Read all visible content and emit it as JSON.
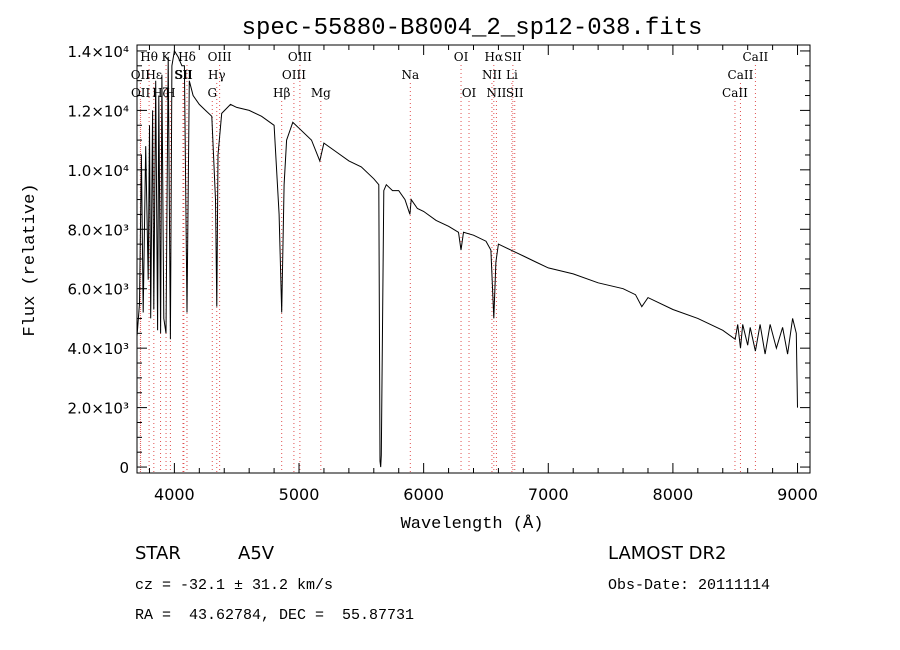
{
  "chart_data": {
    "type": "line",
    "title": "spec-55880-B8004_2_sp12-038.fits",
    "xlabel": "Wavelength (Å)",
    "ylabel": "Flux (relative)",
    "xlim": [
      3700,
      9100
    ],
    "ylim": [
      -200,
      14200
    ],
    "x_ticks": [
      4000,
      5000,
      6000,
      7000,
      8000,
      9000
    ],
    "y_ticks": [
      {
        "value": 0,
        "label": "0"
      },
      {
        "value": 2000,
        "label": "2.0×10³"
      },
      {
        "value": 4000,
        "label": "4.0×10³"
      },
      {
        "value": 6000,
        "label": "6.0×10³"
      },
      {
        "value": 8000,
        "label": "8.0×10³"
      },
      {
        "value": 10000,
        "label": "1.0×10⁴"
      },
      {
        "value": 12000,
        "label": "1.2×10⁴"
      },
      {
        "value": 14000,
        "label": "1.4×10⁴"
      }
    ],
    "spectrum": {
      "x": [
        3700,
        3720,
        3735,
        3750,
        3770,
        3790,
        3800,
        3810,
        3825,
        3835,
        3850,
        3865,
        3875,
        3889,
        3900,
        3915,
        3933,
        3950,
        3968,
        3980,
        4000,
        4030,
        4060,
        4080,
        4101,
        4120,
        4150,
        4200,
        4250,
        4300,
        4330,
        4340,
        4350,
        4380,
        4450,
        4500,
        4600,
        4700,
        4800,
        4840,
        4861,
        4880,
        4900,
        4950,
        5000,
        5100,
        5167,
        5200,
        5300,
        5400,
        5500,
        5600,
        5640,
        5650,
        5655,
        5660,
        5680,
        5700,
        5750,
        5800,
        5850,
        5890,
        5900,
        5950,
        6000,
        6100,
        6200,
        6280,
        6300,
        6320,
        6400,
        6500,
        6540,
        6563,
        6580,
        6600,
        6700,
        6800,
        6900,
        7000,
        7200,
        7400,
        7600,
        7700,
        7750,
        7800,
        8000,
        8200,
        8400,
        8500,
        8520,
        8542,
        8560,
        8600,
        8620,
        8662,
        8700,
        8740,
        8780,
        8830,
        8880,
        8920,
        8960,
        8990,
        9000
      ],
      "y": [
        4400,
        5500,
        10500,
        5200,
        10800,
        6300,
        11500,
        5000,
        12000,
        5300,
        13000,
        4600,
        12500,
        4500,
        13200,
        5000,
        4500,
        13800,
        4300,
        13500,
        14000,
        13800,
        13500,
        13500,
        5200,
        13000,
        12500,
        12200,
        12000,
        11800,
        9000,
        5400,
        10500,
        11900,
        12200,
        12100,
        12000,
        11800,
        11500,
        8500,
        5200,
        9500,
        11000,
        11600,
        11400,
        11000,
        10300,
        10900,
        10600,
        10300,
        10100,
        9700,
        9500,
        200,
        0,
        400,
        9300,
        9500,
        9300,
        9300,
        9000,
        8500,
        9000,
        8700,
        8600,
        8300,
        8100,
        7900,
        7300,
        7900,
        7800,
        7600,
        7300,
        5000,
        6900,
        7500,
        7300,
        7100,
        6900,
        6700,
        6500,
        6200,
        6000,
        5800,
        5400,
        5700,
        5300,
        5000,
        4600,
        4300,
        4800,
        4000,
        4800,
        4100,
        4700,
        3900,
        4800,
        3800,
        4800,
        4000,
        4700,
        3800,
        5000,
        4500,
        2000
      ]
    },
    "line_markers": [
      {
        "label": "Hθ",
        "x": 3797,
        "row": 1
      },
      {
        "label": "OII",
        "x": 3727,
        "row": 2
      },
      {
        "label": "OII",
        "x": 3729,
        "row": 3
      },
      {
        "label": "Hε",
        "x": 3835,
        "row": 2
      },
      {
        "label": "Hζ",
        "x": 3889,
        "row": 3
      },
      {
        "label": "K",
        "x": 3933,
        "row": 1
      },
      {
        "label": "H",
        "x": 3968,
        "row": 3
      },
      {
        "label": "Hδ",
        "x": 4101,
        "row": 1
      },
      {
        "label": "SII",
        "x": 4069,
        "row": 2
      },
      {
        "label": "SII",
        "x": 4076,
        "row": 2
      },
      {
        "label": "OIII",
        "x": 4363,
        "row": 1
      },
      {
        "label": "Hγ",
        "x": 4340,
        "row": 2
      },
      {
        "label": "G",
        "x": 4304,
        "row": 3
      },
      {
        "label": "OIII",
        "x": 5007,
        "row": 1
      },
      {
        "label": "OIII",
        "x": 4959,
        "row": 2
      },
      {
        "label": "Hβ",
        "x": 4861,
        "row": 3
      },
      {
        "label": "Mg",
        "x": 5175,
        "row": 3
      },
      {
        "label": "Na",
        "x": 5893,
        "row": 2
      },
      {
        "label": "OI",
        "x": 6300,
        "row": 1
      },
      {
        "label": "OI",
        "x": 6364,
        "row": 3
      },
      {
        "label": "Hα",
        "x": 6563,
        "row": 1
      },
      {
        "label": "SII",
        "x": 6716,
        "row": 1
      },
      {
        "label": "NII",
        "x": 6548,
        "row": 2
      },
      {
        "label": "Li",
        "x": 6708,
        "row": 2
      },
      {
        "label": "NII",
        "x": 6584,
        "row": 3
      },
      {
        "label": "SII",
        "x": 6731,
        "row": 3
      },
      {
        "label": "CaII",
        "x": 8662,
        "row": 1
      },
      {
        "label": "CaII",
        "x": 8542,
        "row": 2
      },
      {
        "label": "CaII",
        "x": 8498,
        "row": 3
      }
    ]
  },
  "info": {
    "object_class": "STAR",
    "subclass": "A5V",
    "survey": "LAMOST DR2",
    "redshift": "cz = -32.1 ± 31.2 km/s",
    "obs_date": "Obs-Date: 20111114",
    "coords": "RA =  43.62784, DEC =  55.87731"
  }
}
